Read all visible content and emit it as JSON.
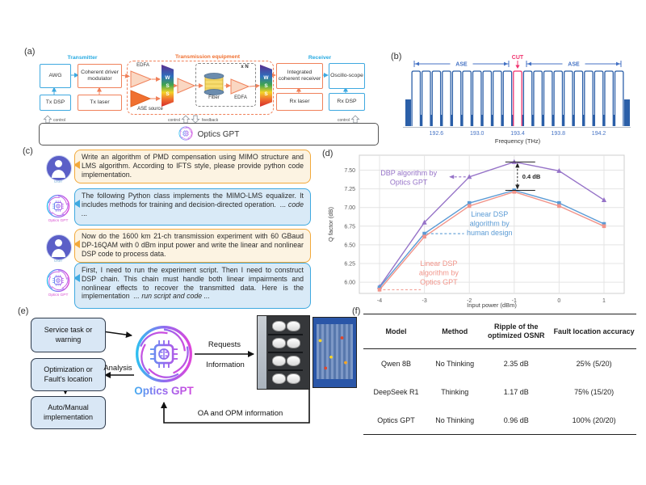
{
  "panels": {
    "a": {
      "label": "(a)",
      "sections": {
        "transmitter": "Transmitter",
        "equipment": "Transmission equipment",
        "receiver": "Receiver"
      },
      "blocks": {
        "awg": "AWG",
        "cdm": "Coherent driver modulator",
        "tx_dsp": "Tx DSP",
        "tx_laser": "Tx laser",
        "edfa1": "EDFA",
        "ase_source": "ASE source",
        "wss": "WSS",
        "xn": "x N",
        "fiber": "Fiber",
        "edfa2": "EDFA",
        "icr": "Integrated coherent receiver",
        "osc": "Oscillo-scope",
        "rx_laser": "Rx laser",
        "rx_dsp": "Rx DSP"
      },
      "signals": {
        "control_left": "control",
        "control_mid": "control",
        "feedback": "feedback",
        "control_right": "control"
      },
      "gpt_bar": "Optics GPT"
    },
    "b": {
      "label": "(b)"
    },
    "c": {
      "label": "(c)",
      "messages": [
        {
          "speaker": "User",
          "text": "Write an algorithm of PMD compensation using MIMO structure and LMS algorithm. According to IFTS style, please provide python code implementation."
        },
        {
          "speaker": "Optics GPT",
          "text": "The following Python class implements the MIMO-LMS equalizer. It includes methods for training and decision-directed operation.  ",
          "italic": "... code ..."
        },
        {
          "speaker": "User",
          "text": "Now do the 1600 km 21-ch transmission experiment with 60 GBaud DP-16QAM with 0 dBm input power and write the linear and nonlinear DSP code to process data."
        },
        {
          "speaker": "Optics GPT",
          "text": "First, I need to run the experiment script. Then I need to construct DSP chain. This chain must handle both linear impairments and nonlinear effects to recover the transmitted data. Here is the implementation  ",
          "italic": "... run script and code ..."
        }
      ]
    },
    "d": {
      "label": "(d)"
    },
    "e": {
      "label": "(e)",
      "boxes": {
        "task": "Service task or warning",
        "optimization": "Optimization or Fault's location",
        "implementation": "Auto/Manual implementation"
      },
      "logo_text": "Optics GPT",
      "labels": {
        "analysis": "Analysis",
        "requests": "Requests",
        "information": "Information",
        "oa": "OA and OPM information"
      }
    },
    "f": {
      "label": "(f)"
    }
  },
  "colors": {
    "brand_cyan": "#25C7F0",
    "brand_purple": "#8E6CF0",
    "brand_magenta": "#E640D8",
    "blue_accent": "#3FA9E0",
    "orange_accent": "#F0815A"
  },
  "chart_data": [
    {
      "id": "wdm-spectrum",
      "type": "line",
      "channels": 21,
      "cut_channel_index": 10,
      "channel_spacing_thz": 0.1,
      "x_range": [
        192.35,
        194.45
      ],
      "x_ticks": [
        "192.6",
        "193.0",
        "193.4",
        "193.8",
        "194.2"
      ],
      "x_tick_values": [
        192.6,
        193.0,
        193.4,
        193.8,
        194.2
      ],
      "xlabel": "Frequency (THz)",
      "annotations": {
        "ase_left": "ASE",
        "cut": "CUT",
        "ase_right": "ASE"
      },
      "colors": {
        "channel": "#2B5FA8",
        "cut": "#F0336E",
        "tick": "#4472C4"
      }
    },
    {
      "id": "q-factor",
      "type": "line",
      "xlabel": "Input power (dBm)",
      "ylabel": "Q factor (dB)",
      "x": [
        -4,
        -3,
        -2,
        -1,
        0,
        1
      ],
      "xlim": [
        -4.45,
        1.45
      ],
      "ylim": [
        5.85,
        7.7
      ],
      "yticks": [
        6.0,
        6.25,
        6.5,
        6.75,
        7.0,
        7.25,
        7.5
      ],
      "grid": true,
      "series": [
        {
          "name": "DBP algorithm by Optics GPT",
          "color": "#9673C8",
          "marker": "triangle",
          "values": [
            5.94,
            6.8,
            7.41,
            7.61,
            7.49,
            7.1
          ]
        },
        {
          "name": "Linear DSP algorithm by human design",
          "color": "#5B9BD5",
          "marker": "square",
          "values": [
            5.93,
            6.65,
            7.06,
            7.23,
            7.06,
            6.78
          ]
        },
        {
          "name": "Linear DSP algorithm by Optics GPT",
          "color": "#F1948A",
          "marker": "square",
          "values": [
            5.9,
            6.61,
            7.02,
            7.21,
            7.02,
            6.75
          ]
        }
      ],
      "annotations": [
        {
          "lines": [
            "DBP algorithm by",
            "Optics GPT"
          ],
          "x": -3.35,
          "y": 7.43,
          "color": "#9673C8"
        },
        {
          "lines": [
            "Linear DSP",
            "algorithm by",
            "human design"
          ],
          "x": -1.55,
          "y": 6.88,
          "color": "#5B9BD5"
        },
        {
          "lines": [
            "Linear DSP",
            "algorithm by",
            "Optics GPT"
          ],
          "x": -2.68,
          "y": 6.22,
          "color": "#F1948A"
        }
      ],
      "leaders": [
        {
          "x1": -2.08,
          "y1": 7.41,
          "x2": -2.45,
          "y2": 7.41,
          "color": "#9673C8",
          "arrow": true
        },
        {
          "x1": -2.95,
          "y1": 6.65,
          "x2": -2.12,
          "y2": 6.65,
          "color": "#5B9BD5",
          "arrow": false
        },
        {
          "x1": -3.92,
          "y1": 5.9,
          "x2": -3.08,
          "y2": 5.9,
          "color": "#F1948A",
          "arrow": false
        }
      ],
      "gap_annotation": {
        "x": -1,
        "y_top": 7.61,
        "y_bottom": 7.23,
        "label": "0.4 dB"
      }
    },
    {
      "id": "results-table",
      "type": "table",
      "headers": [
        "Model",
        "Method",
        "Ripple of the optimized OSNR",
        "Fault location accuracy"
      ],
      "rows": [
        [
          "Qwen 8B",
          "No Thinking",
          "2.35 dB",
          "25%  (5/20)"
        ],
        [
          "DeepSeek R1",
          "Thinking",
          "1.17 dB",
          "75%  (15/20)"
        ],
        [
          "Optics GPT",
          "No Thinking",
          "0.96 dB",
          "100%  (20/20)"
        ]
      ]
    }
  ]
}
